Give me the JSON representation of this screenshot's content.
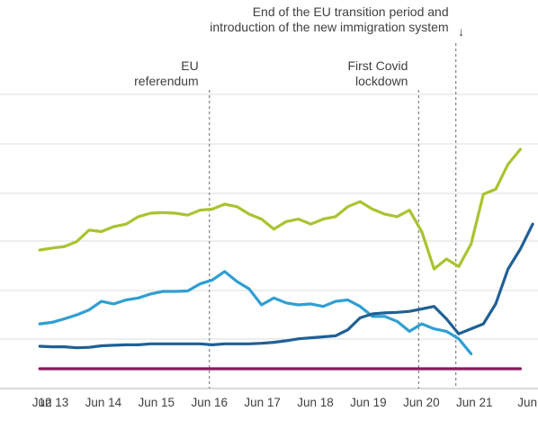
{
  "chart_data": {
    "type": "line",
    "title": "",
    "xlabel": "",
    "ylabel": "",
    "x_ticks": [
      "12",
      "Jun 13",
      "Jun 14",
      "Jun 15",
      "Jun 16",
      "Jun 17",
      "Jun 18",
      "Jun 19",
      "Jun 20",
      "Jun 21",
      "Jun"
    ],
    "x_tick_quarters": [
      -0.4,
      0.0,
      4.0,
      8.0,
      12.0,
      16.0,
      20.0,
      24.0,
      28.0,
      32.0,
      36.0
    ],
    "grid": true,
    "annotations": [
      {
        "lines": [
          "EU",
          "referendum"
        ],
        "quarter": 12.0
      },
      {
        "lines": [
          "First Covid",
          "lockdown"
        ],
        "quarter": 27.8
      },
      {
        "lines": [
          "End of the EU transition period and",
          "introduction of the new immigration system"
        ],
        "quarter": 30.6,
        "arrow": "↓"
      }
    ],
    "series": [
      {
        "color": "#a8c430",
        "values": [
          238,
          242,
          245,
          255,
          278,
          275,
          285,
          290,
          305,
          312,
          313,
          312,
          308,
          318,
          320,
          330,
          325,
          310,
          300,
          280,
          295,
          300,
          290,
          300,
          305,
          325,
          335,
          320,
          310,
          305,
          318,
          275,
          200,
          220,
          205,
          250,
          350,
          360,
          410,
          440
        ]
      },
      {
        "color": "#2f9fd3",
        "values": [
          90,
          93,
          100,
          108,
          118,
          135,
          130,
          138,
          142,
          150,
          155,
          155,
          156,
          170,
          178,
          195,
          175,
          160,
          128,
          142,
          132,
          128,
          130,
          125,
          135,
          138,
          125,
          105,
          105,
          95,
          75,
          90,
          80,
          75,
          60,
          30
        ]
      },
      {
        "color": "#206095",
        "values": [
          45,
          44,
          44,
          42,
          43,
          46,
          47,
          48,
          48,
          50,
          50,
          50,
          50,
          50,
          48,
          50,
          50,
          50,
          51,
          53,
          56,
          60,
          62,
          64,
          66,
          78,
          102,
          110,
          112,
          113,
          115,
          120,
          125,
          100,
          70,
          80,
          90,
          130,
          200,
          240,
          290
        ]
      },
      {
        "color": "#871a5b",
        "values": [
          0,
          0,
          0,
          0,
          0,
          0,
          0,
          0,
          0,
          0,
          0,
          0,
          0,
          0,
          0,
          0,
          0,
          0,
          0,
          0,
          0,
          0,
          0,
          0,
          0,
          0,
          0,
          0,
          0,
          0,
          0,
          0,
          0,
          0,
          0,
          0,
          0,
          0,
          0,
          0
        ]
      }
    ]
  }
}
